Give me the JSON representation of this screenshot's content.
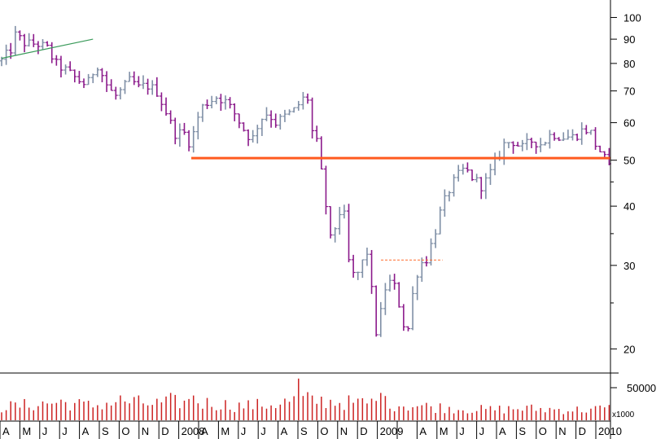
{
  "colors": {
    "background": "#ffffff",
    "up_bar": "#7f8fa6",
    "down_bar": "#8b1a8b",
    "volume_bar": "#cc2222",
    "support_line": "#ff5a1f",
    "trend_line": "#3a9a5a",
    "target_dashed": "#ff6a2a",
    "axis": "#000000"
  },
  "chart_data": {
    "type": "ohlc",
    "price_scale": "log",
    "price_axis": {
      "ticks": [
        20,
        30,
        40,
        50,
        60,
        70,
        80,
        90,
        100
      ],
      "tick_labels": [
        "20",
        "30",
        "40",
        "50",
        "60",
        "70",
        "80",
        "90",
        "100"
      ],
      "range": [
        18,
        108
      ]
    },
    "volume_axis": {
      "ticks": [
        50000
      ],
      "tick_labels": [
        "50000"
      ],
      "multiplier_label": "x1000",
      "range": [
        0,
        70000
      ]
    },
    "x_axis": {
      "month_labels": [
        "A",
        "M",
        "J",
        "J",
        "A",
        "S",
        "O",
        "N",
        "D",
        "2008",
        "A",
        "M",
        "J",
        "J",
        "A",
        "S",
        "O",
        "N",
        "D",
        "2009",
        "A",
        "M",
        "J",
        "J",
        "A",
        "S",
        "O",
        "N",
        "D",
        "2010"
      ],
      "month_index": [
        0,
        1,
        2,
        3,
        4,
        5,
        6,
        7,
        8,
        9,
        10,
        11,
        12,
        13,
        14,
        15,
        16,
        17,
        18,
        19,
        21,
        22,
        23,
        24,
        25,
        26,
        27,
        28,
        29,
        30
      ]
    },
    "support_level": 50.5,
    "support_start_month": 9.55,
    "trend_line": {
      "start": [
        0.0,
        82.0
      ],
      "end": [
        4.6,
        90.0
      ]
    },
    "target_dashed": {
      "price": 30.8,
      "start_month": 19.1,
      "end_month": 22.2
    },
    "price_path": [
      [
        0.0,
        81
      ],
      [
        0.5,
        86
      ],
      [
        0.7,
        92
      ],
      [
        1.2,
        88
      ],
      [
        1.8,
        88
      ],
      [
        2.3,
        86
      ],
      [
        2.7,
        80
      ],
      [
        3.3,
        77
      ],
      [
        3.8,
        74
      ],
      [
        4.3,
        72
      ],
      [
        4.8,
        80
      ],
      [
        5.3,
        72
      ],
      [
        5.7,
        68
      ],
      [
        6.0,
        70
      ],
      [
        6.5,
        74
      ],
      [
        6.9,
        71
      ],
      [
        7.3,
        72
      ],
      [
        7.8,
        70
      ],
      [
        8.3,
        63
      ],
      [
        8.7,
        57
      ],
      [
        9.2,
        57
      ],
      [
        9.5,
        54
      ],
      [
        10.0,
        64
      ],
      [
        10.3,
        66
      ],
      [
        10.8,
        68
      ],
      [
        11.2,
        67
      ],
      [
        11.7,
        63
      ],
      [
        12.2,
        58
      ],
      [
        12.6,
        55
      ],
      [
        13.0,
        61
      ],
      [
        13.4,
        63
      ],
      [
        13.8,
        60
      ],
      [
        14.3,
        62
      ],
      [
        14.8,
        64
      ],
      [
        15.1,
        67
      ],
      [
        15.4,
        68
      ],
      [
        15.6,
        58
      ],
      [
        15.9,
        54
      ],
      [
        16.1,
        47
      ],
      [
        16.3,
        41
      ],
      [
        16.6,
        33
      ],
      [
        16.9,
        38
      ],
      [
        17.2,
        40
      ],
      [
        17.5,
        30
      ],
      [
        17.8,
        28
      ],
      [
        18.1,
        30
      ],
      [
        18.4,
        32
      ],
      [
        18.7,
        25
      ],
      [
        18.9,
        21
      ],
      [
        19.1,
        24
      ],
      [
        19.4,
        28
      ],
      [
        19.8,
        27
      ],
      [
        20.1,
        24
      ],
      [
        20.4,
        21
      ],
      [
        20.7,
        26
      ],
      [
        21.0,
        30
      ],
      [
        21.4,
        31
      ],
      [
        21.8,
        35
      ],
      [
        22.1,
        39
      ],
      [
        22.5,
        43
      ],
      [
        22.9,
        46
      ],
      [
        23.3,
        48
      ],
      [
        23.7,
        46
      ],
      [
        24.2,
        44
      ],
      [
        24.5,
        46
      ],
      [
        24.9,
        50
      ],
      [
        25.3,
        54
      ],
      [
        25.7,
        55
      ],
      [
        26.2,
        53
      ],
      [
        26.7,
        55
      ],
      [
        27.2,
        54
      ],
      [
        27.7,
        57
      ],
      [
        28.2,
        56
      ],
      [
        28.8,
        56
      ],
      [
        29.3,
        58
      ],
      [
        29.6,
        58
      ],
      [
        29.9,
        54
      ],
      [
        30.3,
        51
      ],
      [
        30.5,
        49
      ],
      [
        30.6,
        48
      ]
    ],
    "volume_path": [
      [
        0.0,
        20000
      ],
      [
        1.5,
        24000
      ],
      [
        3.0,
        28000
      ],
      [
        4.5,
        22000
      ],
      [
        6.0,
        30000
      ],
      [
        7.5,
        25000
      ],
      [
        9.0,
        28000
      ],
      [
        10.5,
        26000
      ],
      [
        12.0,
        22000
      ],
      [
        13.5,
        24000
      ],
      [
        15.0,
        32000
      ],
      [
        16.0,
        30000
      ],
      [
        17.0,
        28000
      ],
      [
        18.0,
        26000
      ],
      [
        19.0,
        28000
      ],
      [
        20.0,
        24000
      ],
      [
        21.0,
        22000
      ],
      [
        22.0,
        20000
      ],
      [
        23.0,
        18000
      ],
      [
        24.5,
        16000
      ],
      [
        26.0,
        18000
      ],
      [
        27.5,
        17000
      ],
      [
        29.0,
        16000
      ],
      [
        30.6,
        18000
      ]
    ],
    "volume_spikes": [
      [
        8.55,
        42000
      ],
      [
        15.05,
        64000
      ],
      [
        19.05,
        42000
      ],
      [
        9.75,
        38000
      ]
    ]
  }
}
